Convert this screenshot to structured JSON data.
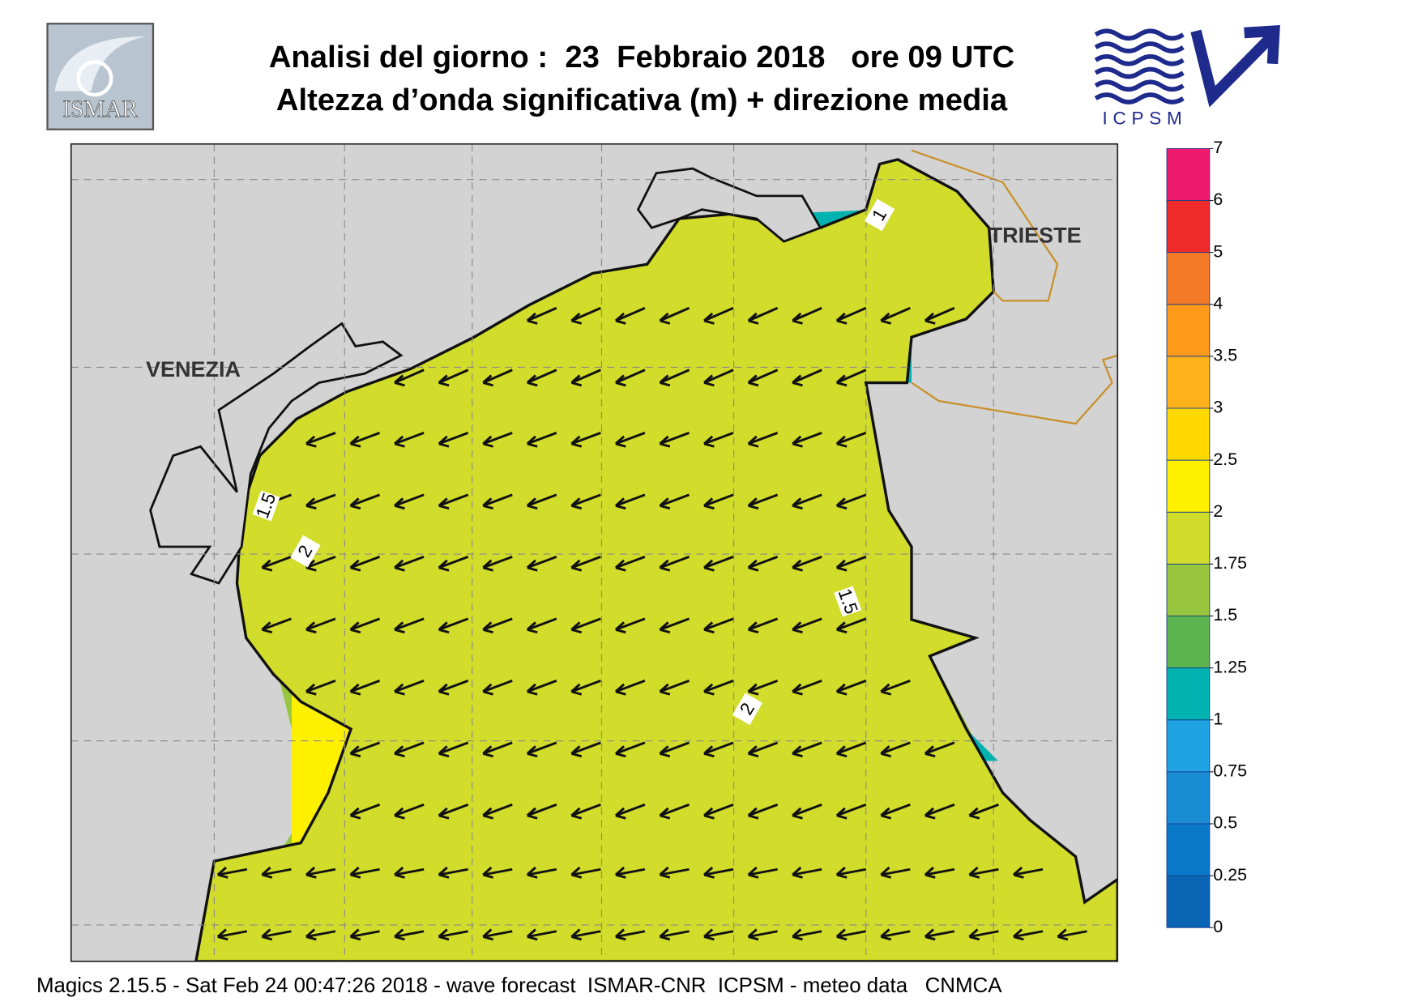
{
  "header": {
    "title": "Analisi del giorno :  23  Febbraio 2018   ore 09 UTC",
    "subtitle": "Altezza d’onda significativa (m) + direzione media"
  },
  "logos": {
    "left": "ISMAR",
    "right": "ICPSM"
  },
  "map": {
    "places": [
      "VENEZIA",
      "TRIESTE"
    ],
    "contour_labels": [
      "1",
      "1.5",
      "2",
      "1.5",
      "2"
    ]
  },
  "colorbar": {
    "ticks": [
      0,
      0.25,
      0.5,
      0.75,
      1,
      1.25,
      1.5,
      1.75,
      2,
      2.5,
      3,
      3.5,
      4,
      5,
      6,
      7
    ],
    "colors": [
      "#0a64b4",
      "#0a78c8",
      "#1a8cd4",
      "#1ea2e2",
      "#00b2b0",
      "#5cb450",
      "#98c63e",
      "#d2dc2a",
      "#fff000",
      "#ffd800",
      "#ffb21a",
      "#ff9a1a",
      "#f57a28",
      "#ee2a2a",
      "#ee1a6e"
    ]
  },
  "footer": "Magics 2.15.5 - Sat Feb 24 00:47:26 2018 - wave forecast  ISMAR-CNR  ICPSM - meteo data   CNMCA"
}
